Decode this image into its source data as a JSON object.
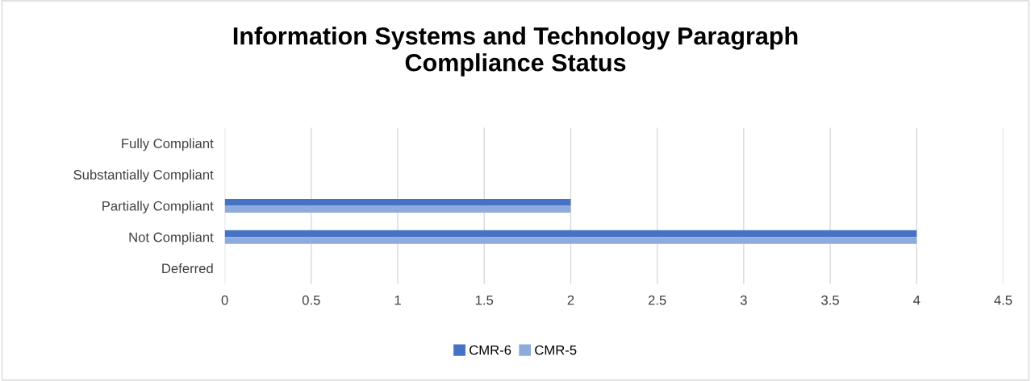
{
  "chart_data": {
    "type": "bar",
    "orientation": "horizontal",
    "title": "Information Systems and Technology Paragraph\nCompliance Status",
    "categories": [
      "Fully Compliant",
      "Substantially Compliant",
      "Partially Compliant",
      "Not Compliant",
      "Deferred"
    ],
    "series": [
      {
        "name": "CMR-6",
        "color": "#4472c4",
        "values": [
          0,
          0,
          2,
          4,
          0
        ]
      },
      {
        "name": "CMR-5",
        "color": "#8faadc",
        "values": [
          0,
          0,
          2,
          4,
          0
        ]
      }
    ],
    "xlim": [
      0,
      4.5
    ],
    "xticks": [
      0,
      0.5,
      1,
      1.5,
      2,
      2.5,
      3,
      3.5,
      4,
      4.5
    ],
    "grid": "x",
    "legend": "bottom"
  }
}
